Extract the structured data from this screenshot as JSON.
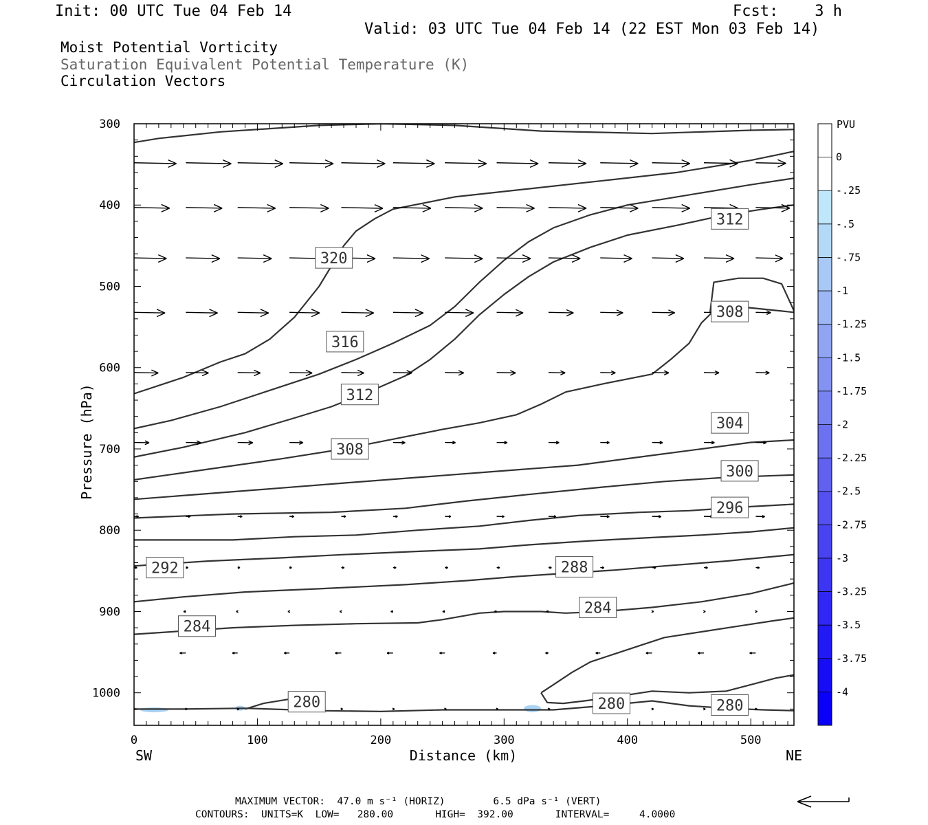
{
  "header": {
    "init": "Init: 00 UTC Tue 04 Feb 14",
    "fcst": "Fcst:    3 h",
    "valid": "Valid: 03 UTC Tue 04 Feb 14 (22 EST Mon 03 Feb 14)",
    "fields": [
      "Moist Potential Vorticity",
      "Saturation Equivalent Potential Temperature (K)",
      "Circulation Vectors"
    ]
  },
  "footer": {
    "max_vector": "MAXIMUM VECTOR:  47.0 m s⁻¹ (HORIZ)        6.5 dPa s⁻¹ (VERT)",
    "contours": "CONTOURS:  UNITS=K  LOW=   280.00       HIGH=  392.00       INTERVAL=     4.0000"
  },
  "colorbar": {
    "unit": "PVU",
    "labels": [
      "0",
      "-.25",
      "-.5",
      "-.75",
      "-1",
      "-1.25",
      "-1.5",
      "-1.75",
      "-2",
      "-2.25",
      "-2.5",
      "-2.75",
      "-3",
      "-3.25",
      "-3.5",
      "-3.75",
      "-4"
    ],
    "colors": [
      "#ffffff",
      "#ffffff",
      "#bfe6fa",
      "#b3d9f7",
      "#a8c8f5",
      "#9cb7f3",
      "#90a4f2",
      "#8493f1",
      "#7882f0",
      "#6c72ef",
      "#6061ef",
      "#5451f0",
      "#4843f0",
      "#3c35f1",
      "#2f27f3",
      "#221af4",
      "#160df6",
      "#0a00f8"
    ]
  },
  "chart_data": {
    "type": "contour",
    "xlabel": "Distance (km)",
    "ylabel": "Pressure (hPa)",
    "xlim": [
      0,
      535
    ],
    "ylim": [
      1040,
      300
    ],
    "x_ticks": [
      0,
      100,
      200,
      300,
      400,
      500
    ],
    "y_ticks": [
      300,
      400,
      500,
      600,
      700,
      800,
      900,
      1000
    ],
    "x_left_label": "SW",
    "x_right_label": "NE",
    "contour_labels": [
      {
        "text": "320",
        "x": 162,
        "p": 465
      },
      {
        "text": "316",
        "x": 171,
        "p": 568
      },
      {
        "text": "312",
        "x": 183,
        "p": 633
      },
      {
        "text": "308",
        "x": 175,
        "p": 700
      },
      {
        "text": "312",
        "x": 483,
        "p": 417
      },
      {
        "text": "308",
        "x": 483,
        "p": 531
      },
      {
        "text": "304",
        "x": 483,
        "p": 668
      },
      {
        "text": "300",
        "x": 491,
        "p": 727
      },
      {
        "text": "296",
        "x": 483,
        "p": 772
      },
      {
        "text": "292",
        "x": 25,
        "p": 846
      },
      {
        "text": "288",
        "x": 357,
        "p": 845
      },
      {
        "text": "284",
        "x": 376,
        "p": 895
      },
      {
        "text": "284",
        "x": 51,
        "p": 918
      },
      {
        "text": "280",
        "x": 140,
        "p": 1011
      },
      {
        "text": "280",
        "x": 387,
        "p": 1013
      },
      {
        "text": "280",
        "x": 483,
        "p": 1015
      }
    ],
    "contours": [
      [
        [
          0,
          323
        ],
        [
          20,
          318
        ],
        [
          70,
          310
        ],
        [
          150,
          302
        ],
        [
          200,
          300
        ],
        [
          260,
          302
        ],
        [
          330,
          309
        ],
        [
          420,
          312
        ],
        [
          500,
          308
        ],
        [
          535,
          307
        ]
      ],
      [
        [
          0,
          632
        ],
        [
          40,
          612
        ],
        [
          70,
          593
        ],
        [
          90,
          583
        ],
        [
          110,
          565
        ],
        [
          130,
          538
        ],
        [
          150,
          500
        ],
        [
          162,
          470
        ],
        [
          170,
          450
        ],
        [
          180,
          432
        ],
        [
          195,
          417
        ],
        [
          210,
          405
        ],
        [
          260,
          390
        ],
        [
          320,
          380
        ],
        [
          380,
          370
        ],
        [
          440,
          360
        ],
        [
          500,
          345
        ],
        [
          535,
          334
        ]
      ],
      [
        [
          0,
          675
        ],
        [
          30,
          665
        ],
        [
          70,
          648
        ],
        [
          110,
          628
        ],
        [
          150,
          608
        ],
        [
          180,
          590
        ],
        [
          210,
          570
        ],
        [
          240,
          548
        ],
        [
          260,
          525
        ],
        [
          280,
          495
        ],
        [
          300,
          468
        ],
        [
          320,
          445
        ],
        [
          340,
          428
        ],
        [
          370,
          412
        ],
        [
          400,
          400
        ],
        [
          440,
          390
        ],
        [
          500,
          375
        ],
        [
          535,
          367
        ]
      ],
      [
        [
          0,
          710
        ],
        [
          40,
          698
        ],
        [
          90,
          680
        ],
        [
          130,
          662
        ],
        [
          160,
          648
        ],
        [
          190,
          630
        ],
        [
          220,
          610
        ],
        [
          240,
          590
        ],
        [
          260,
          565
        ],
        [
          280,
          535
        ],
        [
          300,
          510
        ],
        [
          320,
          488
        ],
        [
          340,
          470
        ],
        [
          370,
          452
        ],
        [
          400,
          437
        ],
        [
          440,
          425
        ],
        [
          480,
          412
        ],
        [
          510,
          405
        ],
        [
          535,
          400
        ]
      ],
      [
        [
          0,
          738
        ],
        [
          60,
          725
        ],
        [
          120,
          712
        ],
        [
          170,
          700
        ],
        [
          210,
          688
        ],
        [
          250,
          676
        ],
        [
          280,
          668
        ],
        [
          310,
          658
        ],
        [
          330,
          645
        ],
        [
          350,
          630
        ],
        [
          380,
          620
        ],
        [
          420,
          608
        ],
        [
          435,
          590
        ],
        [
          450,
          570
        ],
        [
          460,
          545
        ],
        [
          470,
          530
        ],
        [
          490,
          525
        ],
        [
          510,
          528
        ],
        [
          535,
          532
        ]
      ],
      [
        [
          467,
          532
        ],
        [
          470,
          495
        ],
        [
          490,
          490
        ],
        [
          510,
          490
        ],
        [
          525,
          497
        ],
        [
          535,
          530
        ]
      ],
      [
        [
          0,
          762
        ],
        [
          60,
          755
        ],
        [
          120,
          748
        ],
        [
          170,
          742
        ],
        [
          230,
          735
        ],
        [
          290,
          728
        ],
        [
          360,
          720
        ],
        [
          420,
          708
        ],
        [
          460,
          700
        ],
        [
          500,
          692
        ],
        [
          535,
          689
        ]
      ],
      [
        [
          0,
          785
        ],
        [
          80,
          780
        ],
        [
          160,
          778
        ],
        [
          220,
          773
        ],
        [
          270,
          764
        ],
        [
          320,
          756
        ],
        [
          380,
          747
        ],
        [
          430,
          740
        ],
        [
          480,
          735
        ],
        [
          535,
          732
        ]
      ],
      [
        [
          0,
          812
        ],
        [
          80,
          812
        ],
        [
          130,
          808
        ],
        [
          180,
          806
        ],
        [
          230,
          800
        ],
        [
          280,
          795
        ],
        [
          320,
          788
        ],
        [
          360,
          782
        ],
        [
          410,
          778
        ],
        [
          450,
          776
        ],
        [
          500,
          771
        ],
        [
          535,
          768
        ]
      ],
      [
        [
          0,
          844
        ],
        [
          60,
          838
        ],
        [
          120,
          834
        ],
        [
          170,
          830
        ],
        [
          230,
          826
        ],
        [
          280,
          823
        ],
        [
          320,
          818
        ],
        [
          370,
          813
        ],
        [
          420,
          809
        ],
        [
          460,
          806
        ],
        [
          500,
          802
        ],
        [
          535,
          797
        ]
      ],
      [
        [
          0,
          888
        ],
        [
          40,
          882
        ],
        [
          90,
          876
        ],
        [
          150,
          872
        ],
        [
          220,
          867
        ],
        [
          270,
          862
        ],
        [
          310,
          857
        ],
        [
          350,
          853
        ],
        [
          390,
          849
        ],
        [
          430,
          844
        ],
        [
          480,
          838
        ],
        [
          535,
          830
        ]
      ],
      [
        [
          0,
          928
        ],
        [
          40,
          924
        ],
        [
          80,
          920
        ],
        [
          130,
          917
        ],
        [
          180,
          915
        ],
        [
          230,
          914
        ],
        [
          250,
          910
        ],
        [
          280,
          902
        ],
        [
          300,
          900
        ],
        [
          330,
          900
        ],
        [
          350,
          902
        ],
        [
          380,
          900
        ],
        [
          420,
          895
        ],
        [
          460,
          888
        ],
        [
          500,
          878
        ],
        [
          535,
          865
        ]
      ],
      [
        [
          0,
          1020
        ],
        [
          40,
          1020
        ],
        [
          90,
          1019
        ],
        [
          150,
          1022
        ],
        [
          200,
          1023
        ],
        [
          250,
          1021
        ],
        [
          300,
          1021
        ],
        [
          340,
          1021
        ],
        [
          380,
          1016
        ],
        [
          420,
          1010
        ],
        [
          450,
          1016
        ],
        [
          480,
          1019
        ],
        [
          510,
          1021
        ],
        [
          535,
          1022
        ]
      ],
      [
        [
          90,
          1020
        ],
        [
          105,
          1013
        ],
        [
          125,
          1008
        ]
      ],
      [
        [
          330,
          1000
        ],
        [
          340,
          990
        ],
        [
          355,
          975
        ],
        [
          370,
          962
        ],
        [
          390,
          952
        ],
        [
          410,
          942
        ],
        [
          430,
          932
        ],
        [
          460,
          925
        ],
        [
          490,
          918
        ],
        [
          520,
          911
        ],
        [
          535,
          908
        ]
      ],
      [
        [
          330,
          1000
        ],
        [
          335,
          1012
        ],
        [
          348,
          1013
        ],
        [
          365,
          1010
        ],
        [
          390,
          1005
        ],
        [
          420,
          998
        ],
        [
          450,
          1000
        ],
        [
          480,
          998
        ],
        [
          500,
          990
        ],
        [
          520,
          982
        ],
        [
          535,
          978
        ]
      ]
    ],
    "vectors": {
      "levels": [
        348,
        403,
        465,
        532,
        606,
        692,
        783,
        846,
        900,
        951,
        1020
      ],
      "x": [
        0,
        42,
        84,
        126,
        168,
        210,
        252,
        294,
        336,
        378,
        420,
        462,
        504
      ],
      "u": [
        [
          0.56,
          0.6,
          0.6,
          0.58,
          0.58,
          0.55,
          0.55,
          0.55,
          0.5,
          0.5,
          0.5,
          0.45,
          0.4
        ],
        [
          0.47,
          0.48,
          0.5,
          0.52,
          0.55,
          0.5,
          0.5,
          0.5,
          0.5,
          0.5,
          0.5,
          0.45,
          0.45
        ],
        [
          0.43,
          0.45,
          0.45,
          0.48,
          0.45,
          0.48,
          0.5,
          0.45,
          0.42,
          0.42,
          0.42,
          0.4,
          0.36
        ],
        [
          0.41,
          0.42,
          0.41,
          0.4,
          0.43,
          0.4,
          0.38,
          0.35,
          0.33,
          0.3,
          0.3,
          0.25,
          0.2
        ],
        [
          0.32,
          0.3,
          0.3,
          0.3,
          0.3,
          0.25,
          0.25,
          0.25,
          0.22,
          0.2,
          0.22,
          0.2,
          0.18
        ],
        [
          0.2,
          0.2,
          0.2,
          0.18,
          0.2,
          0.16,
          0.14,
          0.14,
          0.14,
          0.12,
          0.14,
          0.14,
          0.14
        ],
        [
          0.06,
          0.06,
          0.06,
          0.06,
          0.06,
          0.06,
          0.08,
          0.1,
          0.1,
          0.12,
          0.12,
          0.12,
          0.12
        ],
        [
          0.04,
          0.03,
          0.03,
          0.03,
          0.04,
          0.04,
          0.04,
          0.04,
          0.04,
          0.05,
          0.05,
          0.05,
          0.05
        ],
        [
          -0.03,
          -0.03,
          -0.02,
          -0.02,
          -0.02,
          -0.03,
          -0.03,
          -0.03,
          -0.03,
          -0.03,
          0.02,
          0.02,
          0.02
        ],
        [
          -0.08,
          -0.08,
          -0.07,
          -0.07,
          -0.08,
          -0.08,
          -0.07,
          -0.05,
          -0.04,
          -0.06,
          -0.08,
          -0.08,
          -0.08
        ],
        [
          0.02,
          0.02,
          0.02,
          0.02,
          0.02,
          0.02,
          0.02,
          0.02,
          0.02,
          0.02,
          0.02,
          0.02,
          0.02
        ]
      ]
    },
    "shading": [
      {
        "x": [
          5,
          28
        ],
        "p": [
          1018,
          1024
        ],
        "value": -0.5
      },
      {
        "x": [
          316,
          330
        ],
        "p": [
          1015,
          1024
        ],
        "value": -0.5
      },
      {
        "x": [
          82,
          90
        ],
        "p": [
          1016,
          1022
        ],
        "value": -0.5
      }
    ]
  }
}
